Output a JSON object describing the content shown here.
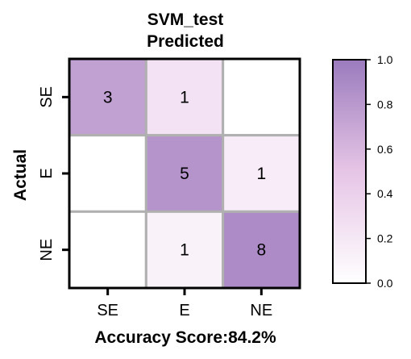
{
  "chart_data": {
    "type": "heatmap",
    "title_line1": "SVM_test",
    "title_line2": "Predicted",
    "ylabel": "Actual",
    "xlabel": "Accuracy Score:84.2%",
    "x_categories": [
      "SE",
      "E",
      "NE"
    ],
    "y_categories": [
      "SE",
      "E",
      "NE"
    ],
    "counts": [
      [
        3,
        1,
        null
      ],
      [
        null,
        5,
        1
      ],
      [
        null,
        1,
        8
      ]
    ],
    "normalized": [
      [
        0.75,
        0.25,
        0.0
      ],
      [
        0.0,
        0.833,
        0.167
      ],
      [
        0.0,
        0.111,
        0.889
      ]
    ],
    "colorbar": {
      "min": 0.0,
      "max": 1.0,
      "ticks": [
        "0.0",
        "0.2",
        "0.4",
        "0.6",
        "0.8",
        "1.0"
      ],
      "color_low": "#ffffff",
      "color_mid": "#e6c5e6",
      "color_high": "#9b7bbd"
    },
    "grid_color": "#b0b0b0"
  }
}
